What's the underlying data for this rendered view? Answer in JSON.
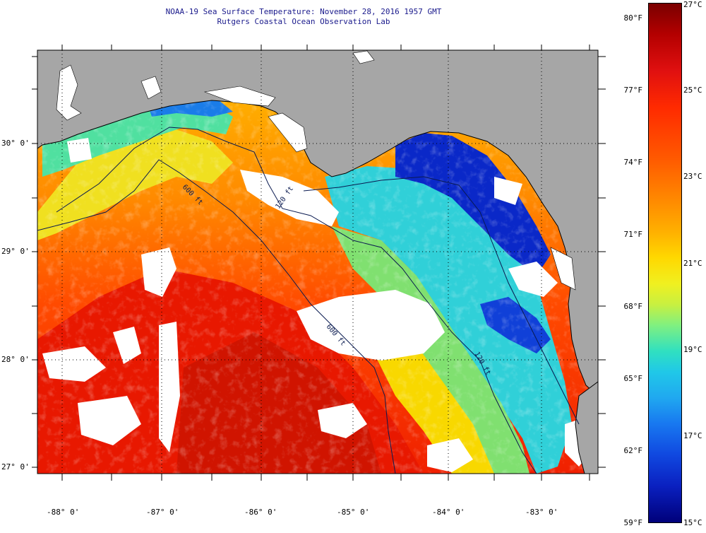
{
  "header": {
    "title": "NOAA-19 Sea Surface Temperature:  November 28, 2016 1957 GMT",
    "subtitle": "Rutgers Coastal Ocean Observation Lab"
  },
  "map": {
    "latitude_labels": [
      "30° 0'",
      "29° 0'",
      "28° 0'",
      "27° 0'"
    ],
    "longitude_labels": [
      "-88° 0'",
      "-87° 0'",
      "-86° 0'",
      "-85° 0'",
      "-84° 0'",
      "-83° 0'"
    ],
    "isobath_labels": [
      "120 ft",
      "600 ft",
      "600 ft",
      "120 ft"
    ],
    "colors": {
      "land": "#a6a6a6",
      "cloud": "#ffffff",
      "coastline": "#000000"
    }
  },
  "colorbar": {
    "fahrenheit_labels": [
      "80°F",
      "77°F",
      "74°F",
      "71°F",
      "68°F",
      "65°F",
      "62°F",
      "59°F"
    ],
    "celsius_labels": [
      "27°C",
      "25°C",
      "23°C",
      "21°C",
      "19°C",
      "17°C",
      "15°C"
    ]
  }
}
